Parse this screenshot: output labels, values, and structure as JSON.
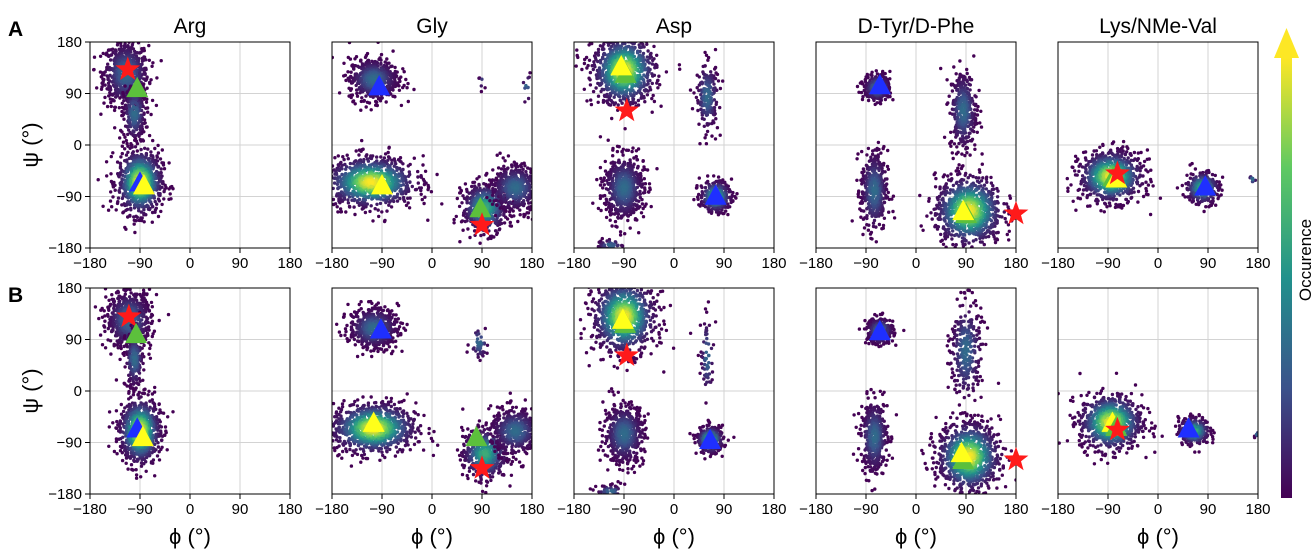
{
  "colors": {
    "density_low": "#440154",
    "density_mid": "#21918c",
    "density_high": "#fde725",
    "marker_blue": "#1f2fff",
    "marker_green": "#5cc03c",
    "marker_yellow": "#ffff1a",
    "marker_red": "#ff1a1a",
    "grid": "#d3d3d3"
  },
  "row_labels": [
    "A",
    "B"
  ],
  "colorbar": {
    "label": "Occurence",
    "colormap": "viridis",
    "arrow": "up"
  },
  "chart_data": [
    {
      "type": "scatter",
      "row": "A",
      "title": "Arg",
      "xlabel": "",
      "ylabel": "ψ (°)",
      "xlim": [
        -180,
        180
      ],
      "ylim": [
        -180,
        180
      ],
      "grid": true,
      "xticks": [
        "−180",
        "−90",
        "0",
        "90",
        "180"
      ],
      "yticks": [
        "−180",
        "−90",
        "0",
        "90",
        "180"
      ],
      "clusters": [
        {
          "center": [
            -115,
            125
          ],
          "spread": [
            20,
            28
          ],
          "n": 700,
          "density": "low"
        },
        {
          "center": [
            -100,
            55
          ],
          "spread": [
            10,
            25
          ],
          "n": 250,
          "density": "low"
        },
        {
          "center": [
            -90,
            -65
          ],
          "spread": [
            20,
            28
          ],
          "n": 800,
          "density": "high"
        }
      ],
      "markers": [
        {
          "shape": "star",
          "color": "red",
          "phi": -112,
          "psi": 132
        },
        {
          "shape": "triangle",
          "color": "green",
          "phi": -95,
          "psi": 100
        },
        {
          "shape": "triangle",
          "color": "blue",
          "phi": -90,
          "psi": -65
        },
        {
          "shape": "triangle",
          "color": "yellow",
          "phi": -83,
          "psi": -70
        }
      ]
    },
    {
      "type": "scatter",
      "row": "A",
      "title": "Gly",
      "xlabel": "",
      "ylabel": "",
      "xlim": [
        -180,
        180
      ],
      "ylim": [
        -180,
        180
      ],
      "grid": true,
      "xticks": [
        "−180",
        "−90",
        "0",
        "90",
        "180"
      ],
      "yticks": [],
      "clusters": [
        {
          "center": [
            -105,
            115
          ],
          "spread": [
            22,
            18
          ],
          "n": 600,
          "density": "low"
        },
        {
          "center": [
            -110,
            -65
          ],
          "spread": [
            40,
            22
          ],
          "n": 900,
          "density": "high"
        },
        {
          "center": [
            95,
            -110
          ],
          "spread": [
            20,
            22
          ],
          "n": 500,
          "density": "mid"
        },
        {
          "center": [
            150,
            -75
          ],
          "spread": [
            22,
            20
          ],
          "n": 500,
          "density": "low"
        },
        {
          "center": [
            90,
            110
          ],
          "spread": [
            3,
            5
          ],
          "n": 6,
          "density": "low"
        },
        {
          "center": [
            170,
            100
          ],
          "spread": [
            4,
            15
          ],
          "n": 10,
          "density": "low"
        }
      ],
      "markers": [
        {
          "shape": "triangle",
          "color": "blue",
          "phi": -95,
          "psi": 103
        },
        {
          "shape": "triangle",
          "color": "yellow",
          "phi": -90,
          "psi": -70
        },
        {
          "shape": "triangle",
          "color": "green",
          "phi": 87,
          "psi": -110
        },
        {
          "shape": "star",
          "color": "red",
          "phi": 90,
          "psi": -140
        }
      ]
    },
    {
      "type": "scatter",
      "row": "A",
      "title": "Asp",
      "xlabel": "",
      "ylabel": "",
      "xlim": [
        -180,
        180
      ],
      "ylim": [
        -180,
        180
      ],
      "grid": true,
      "xticks": [
        "−180",
        "−90",
        "0",
        "90",
        "180"
      ],
      "yticks": [],
      "clusters": [
        {
          "center": [
            -90,
            130
          ],
          "spread": [
            28,
            30
          ],
          "n": 900,
          "density": "high"
        },
        {
          "center": [
            -90,
            -75
          ],
          "spread": [
            18,
            28
          ],
          "n": 600,
          "density": "low"
        },
        {
          "center": [
            60,
            85
          ],
          "spread": [
            10,
            30
          ],
          "n": 200,
          "density": "low"
        },
        {
          "center": [
            75,
            -90
          ],
          "spread": [
            14,
            14
          ],
          "n": 300,
          "density": "mid"
        },
        {
          "center": [
            -115,
            -175
          ],
          "spread": [
            12,
            5
          ],
          "n": 40,
          "density": "low"
        }
      ],
      "markers": [
        {
          "shape": "triangle",
          "color": "green",
          "phi": -87,
          "psi": 125
        },
        {
          "shape": "triangle",
          "color": "yellow",
          "phi": -95,
          "psi": 138
        },
        {
          "shape": "star",
          "color": "red",
          "phi": -85,
          "psi": 60
        },
        {
          "shape": "triangle",
          "color": "blue",
          "phi": 75,
          "psi": -88
        }
      ]
    },
    {
      "type": "scatter",
      "row": "A",
      "title": "D-Tyr/D-Phe",
      "xlabel": "",
      "ylabel": "",
      "xlim": [
        -180,
        180
      ],
      "ylim": [
        -180,
        180
      ],
      "grid": true,
      "xticks": [
        "−180",
        "−90",
        "0",
        "90",
        "180"
      ],
      "yticks": [],
      "clusters": [
        {
          "center": [
            -70,
            100
          ],
          "spread": [
            12,
            12
          ],
          "n": 300,
          "density": "low"
        },
        {
          "center": [
            -75,
            -80
          ],
          "spread": [
            12,
            35
          ],
          "n": 400,
          "density": "low"
        },
        {
          "center": [
            85,
            60
          ],
          "spread": [
            12,
            35
          ],
          "n": 350,
          "density": "low"
        },
        {
          "center": [
            95,
            -115
          ],
          "spread": [
            30,
            30
          ],
          "n": 900,
          "density": "high"
        }
      ],
      "markers": [
        {
          "shape": "triangle",
          "color": "blue",
          "phi": -65,
          "psi": 105
        },
        {
          "shape": "triangle",
          "color": "green",
          "phi": 90,
          "psi": -120
        },
        {
          "shape": "triangle",
          "color": "yellow",
          "phi": 85,
          "psi": -115
        },
        {
          "shape": "star",
          "color": "red",
          "phi": 180,
          "psi": -120
        }
      ]
    },
    {
      "type": "scatter",
      "row": "A",
      "title": "Lys/NMe-Val",
      "xlabel": "",
      "ylabel": "",
      "xlim": [
        -180,
        180
      ],
      "ylim": [
        -180,
        180
      ],
      "grid": true,
      "xticks": [
        "−180",
        "−90",
        "0",
        "90",
        "180"
      ],
      "yticks": [],
      "clusters": [
        {
          "center": [
            -85,
            -55
          ],
          "spread": [
            28,
            22
          ],
          "n": 800,
          "density": "high"
        },
        {
          "center": [
            80,
            -75
          ],
          "spread": [
            15,
            14
          ],
          "n": 300,
          "density": "mid"
        },
        {
          "center": [
            170,
            -60
          ],
          "spread": [
            4,
            4
          ],
          "n": 8,
          "density": "low"
        }
      ],
      "markers": [
        {
          "shape": "triangle",
          "color": "green",
          "phi": -80,
          "psi": -55
        },
        {
          "shape": "triangle",
          "color": "yellow",
          "phi": -75,
          "psi": -58
        },
        {
          "shape": "star",
          "color": "red",
          "phi": -73,
          "psi": -50
        },
        {
          "shape": "triangle",
          "color": "blue",
          "phi": 85,
          "psi": -72
        }
      ]
    },
    {
      "type": "scatter",
      "row": "B",
      "title": "",
      "xlabel": "ϕ (°)",
      "ylabel": "ψ (°)",
      "xlim": [
        -180,
        180
      ],
      "ylim": [
        -180,
        180
      ],
      "grid": true,
      "xticks": [
        "−180",
        "−90",
        "0",
        "90",
        "180"
      ],
      "yticks": [
        "−180",
        "−90",
        "0",
        "90",
        "180"
      ],
      "clusters": [
        {
          "center": [
            -110,
            125
          ],
          "spread": [
            20,
            25
          ],
          "n": 650,
          "density": "low"
        },
        {
          "center": [
            -100,
            55
          ],
          "spread": [
            8,
            25
          ],
          "n": 220,
          "density": "low"
        },
        {
          "center": [
            -90,
            -70
          ],
          "spread": [
            18,
            28
          ],
          "n": 800,
          "density": "high"
        }
      ],
      "markers": [
        {
          "shape": "star",
          "color": "red",
          "phi": -110,
          "psi": 130
        },
        {
          "shape": "triangle",
          "color": "green",
          "phi": -97,
          "psi": 100
        },
        {
          "shape": "triangle",
          "color": "blue",
          "phi": -95,
          "psi": -65
        },
        {
          "shape": "triangle",
          "color": "yellow",
          "phi": -85,
          "psi": -80
        }
      ]
    },
    {
      "type": "scatter",
      "row": "B",
      "title": "",
      "xlabel": "ϕ (°)",
      "ylabel": "",
      "xlim": [
        -180,
        180
      ],
      "ylim": [
        -180,
        180
      ],
      "grid": true,
      "xticks": [
        "−180",
        "−90",
        "0",
        "90",
        "180"
      ],
      "yticks": [],
      "clusters": [
        {
          "center": [
            -105,
            110
          ],
          "spread": [
            22,
            18
          ],
          "n": 550,
          "density": "low"
        },
        {
          "center": [
            -105,
            -65
          ],
          "spread": [
            38,
            22
          ],
          "n": 900,
          "density": "high"
        },
        {
          "center": [
            95,
            -110
          ],
          "spread": [
            20,
            22
          ],
          "n": 500,
          "density": "mid"
        },
        {
          "center": [
            150,
            -70
          ],
          "spread": [
            22,
            20
          ],
          "n": 450,
          "density": "low"
        },
        {
          "center": [
            85,
            85
          ],
          "spread": [
            8,
            15
          ],
          "n": 40,
          "density": "low"
        }
      ],
      "markers": [
        {
          "shape": "triangle",
          "color": "blue",
          "phi": -92,
          "psi": 108
        },
        {
          "shape": "triangle",
          "color": "yellow",
          "phi": -105,
          "psi": -55
        },
        {
          "shape": "triangle",
          "color": "green",
          "phi": 80,
          "psi": -80
        },
        {
          "shape": "star",
          "color": "red",
          "phi": 90,
          "psi": -135
        }
      ]
    },
    {
      "type": "scatter",
      "row": "B",
      "title": "",
      "xlabel": "ϕ (°)",
      "ylabel": "",
      "xlim": [
        -180,
        180
      ],
      "ylim": [
        -180,
        180
      ],
      "grid": true,
      "xticks": [
        "−180",
        "−90",
        "0",
        "90",
        "180"
      ],
      "yticks": [],
      "clusters": [
        {
          "center": [
            -90,
            130
          ],
          "spread": [
            28,
            32
          ],
          "n": 900,
          "density": "high"
        },
        {
          "center": [
            -90,
            -75
          ],
          "spread": [
            18,
            26
          ],
          "n": 550,
          "density": "low"
        },
        {
          "center": [
            60,
            60
          ],
          "spread": [
            6,
            35
          ],
          "n": 60,
          "density": "low"
        },
        {
          "center": [
            65,
            -85
          ],
          "spread": [
            12,
            12
          ],
          "n": 280,
          "density": "mid"
        },
        {
          "center": [
            -115,
            -175
          ],
          "spread": [
            12,
            5
          ],
          "n": 40,
          "density": "low"
        }
      ],
      "markers": [
        {
          "shape": "triangle",
          "color": "green",
          "phi": -88,
          "psi": 118
        },
        {
          "shape": "triangle",
          "color": "yellow",
          "phi": -92,
          "psi": 125
        },
        {
          "shape": "star",
          "color": "red",
          "phi": -85,
          "psi": 62
        },
        {
          "shape": "triangle",
          "color": "blue",
          "phi": 65,
          "psi": -85
        }
      ]
    },
    {
      "type": "scatter",
      "row": "B",
      "title": "",
      "xlabel": "ϕ (°)",
      "ylabel": "",
      "xlim": [
        -180,
        180
      ],
      "ylim": [
        -180,
        180
      ],
      "grid": true,
      "xticks": [
        "−180",
        "−90",
        "0",
        "90",
        "180"
      ],
      "yticks": [],
      "clusters": [
        {
          "center": [
            -65,
            105
          ],
          "spread": [
            12,
            12
          ],
          "n": 280,
          "density": "low"
        },
        {
          "center": [
            -75,
            -80
          ],
          "spread": [
            12,
            32
          ],
          "n": 400,
          "density": "low"
        },
        {
          "center": [
            90,
            70
          ],
          "spread": [
            14,
            45
          ],
          "n": 300,
          "density": "low"
        },
        {
          "center": [
            95,
            -115
          ],
          "spread": [
            28,
            30
          ],
          "n": 900,
          "density": "high"
        }
      ],
      "markers": [
        {
          "shape": "triangle",
          "color": "blue",
          "phi": -65,
          "psi": 105
        },
        {
          "shape": "triangle",
          "color": "green",
          "phi": 85,
          "psi": -120
        },
        {
          "shape": "triangle",
          "color": "yellow",
          "phi": 82,
          "psi": -108
        },
        {
          "shape": "star",
          "color": "red",
          "phi": 180,
          "psi": -120
        }
      ]
    },
    {
      "type": "scatter",
      "row": "B",
      "title": "",
      "xlabel": "ϕ (°)",
      "ylabel": "",
      "xlim": [
        -180,
        180
      ],
      "ylim": [
        -180,
        180
      ],
      "grid": true,
      "xticks": [
        "−180",
        "−90",
        "0",
        "90",
        "180"
      ],
      "yticks": [],
      "clusters": [
        {
          "center": [
            -85,
            -55
          ],
          "spread": [
            28,
            24
          ],
          "n": 800,
          "density": "high"
        },
        {
          "center": [
            65,
            -70
          ],
          "spread": [
            14,
            12
          ],
          "n": 280,
          "density": "mid"
        },
        {
          "center": [
            178,
            -75
          ],
          "spread": [
            3,
            3
          ],
          "n": 5,
          "density": "low"
        }
      ],
      "markers": [
        {
          "shape": "triangle",
          "color": "yellow",
          "phi": -82,
          "psi": -55
        },
        {
          "shape": "triangle",
          "color": "green",
          "phi": -75,
          "psi": -62
        },
        {
          "shape": "star",
          "color": "red",
          "phi": -73,
          "psi": -68
        },
        {
          "shape": "triangle",
          "color": "blue",
          "phi": 55,
          "psi": -65
        }
      ]
    }
  ]
}
